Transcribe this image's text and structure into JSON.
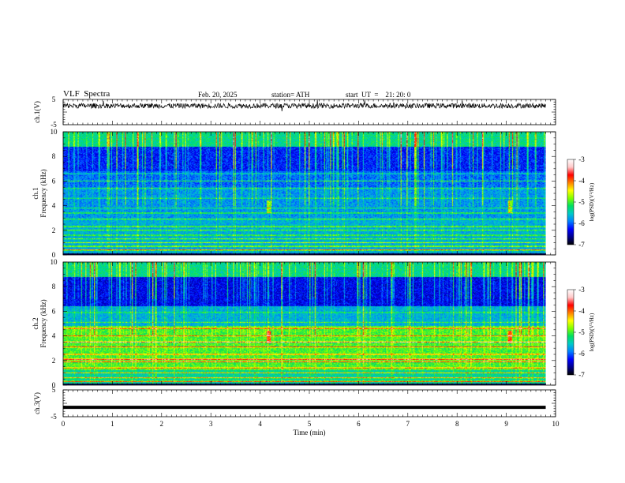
{
  "header": {
    "title": "VLF  Spectra",
    "date": "Feb. 20, 2025",
    "station": "station= ATH",
    "start_ut": "start  UT  =    21: 20: 0"
  },
  "chart_data": [
    {
      "type": "line",
      "name": "ch1-waveform",
      "ylabel": "ch.1(V)",
      "ylim": [
        -5,
        5
      ],
      "y_ticks": [
        "5",
        "-5"
      ],
      "x_range_min": [
        0,
        9.8
      ],
      "noise_level_v": [
        1.5,
        3.5
      ]
    },
    {
      "type": "heatmap",
      "name": "ch1-spectrogram",
      "ylabel": "ch.1\nFrequency (kHz)",
      "ylim": [
        0,
        10
      ],
      "y_ticks": [
        "0",
        "2",
        "4",
        "6",
        "8",
        "10"
      ],
      "colorbar": {
        "label": "log(PSD)(V²/Hz)",
        "range": [
          -7,
          -3
        ],
        "ticks": [
          "-3",
          "-4",
          "-5",
          "-6",
          "-7"
        ],
        "colors": [
          "#000000",
          "#00008b",
          "#0000ff",
          "#0080ff",
          "#00c8c8",
          "#00e060",
          "#80ff00",
          "#ffff00",
          "#ff8000",
          "#ff0000",
          "#ffc8c8",
          "#ffffff"
        ]
      }
    },
    {
      "type": "heatmap",
      "name": "ch2-spectrogram",
      "ylabel": "ch.2\nFrequency (kHz)",
      "ylim": [
        0,
        10
      ],
      "y_ticks": [
        "0",
        "2",
        "4",
        "6",
        "8",
        "10"
      ],
      "colorbar": {
        "label": "log(PSD)(V²/Hz)",
        "range": [
          -7,
          -3
        ],
        "ticks": [
          "-3",
          "-4",
          "-5",
          "-6",
          "-7"
        ],
        "colors": [
          "#000000",
          "#00008b",
          "#0000ff",
          "#0080ff",
          "#00c8c8",
          "#00e060",
          "#80ff00",
          "#ffff00",
          "#ff8000",
          "#ff0000",
          "#ffc8c8",
          "#ffffff"
        ]
      }
    },
    {
      "type": "line",
      "name": "ch3-waveform",
      "ylabel": "ch.3(V)",
      "ylim": [
        -5,
        5
      ],
      "y_ticks": [
        "5",
        "-5"
      ],
      "level_v": -1.5
    }
  ],
  "x_axis": {
    "xlabel": "Time  (min)",
    "xlim": [
      0,
      10
    ],
    "ticks": [
      "0",
      "1",
      "2",
      "3",
      "4",
      "5",
      "6",
      "7",
      "8",
      "9",
      "10"
    ]
  }
}
